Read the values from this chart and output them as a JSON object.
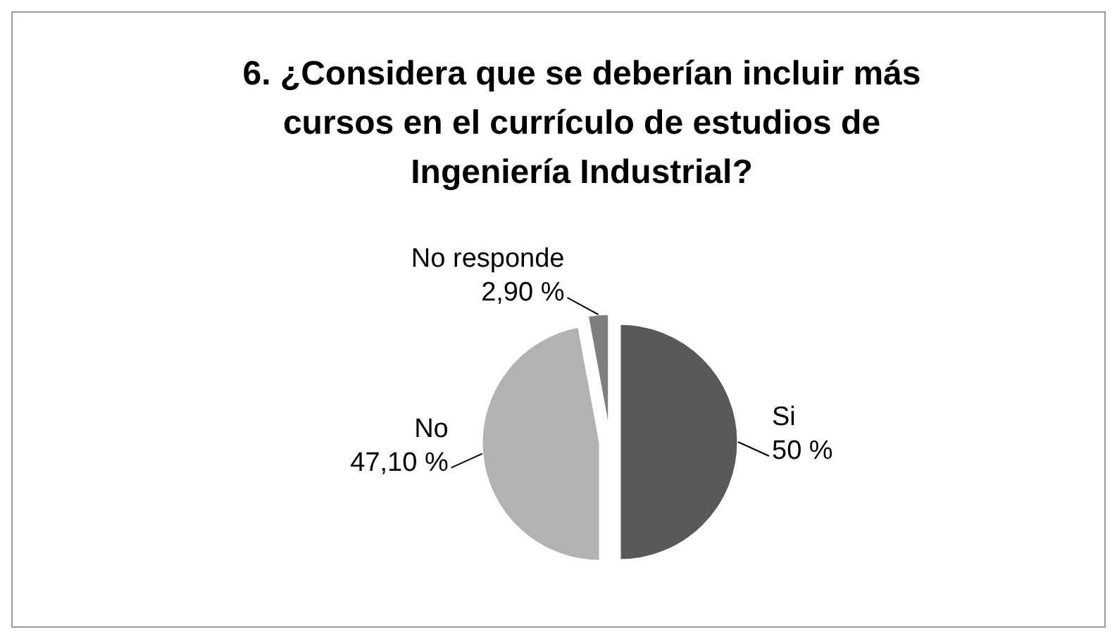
{
  "chart_data": {
    "type": "pie",
    "title": "6. ¿Considera que se deberían incluir más cursos en el currículo de estudios de Ingeniería Industrial?",
    "categories": [
      "Si",
      "No",
      "No responde"
    ],
    "values": [
      50,
      47.1,
      2.9
    ],
    "value_labels": [
      "50 %",
      "47,10 %",
      "2,90 %"
    ],
    "colors": [
      "#595959",
      "#b2b2b2",
      "#7f7f7f"
    ]
  }
}
